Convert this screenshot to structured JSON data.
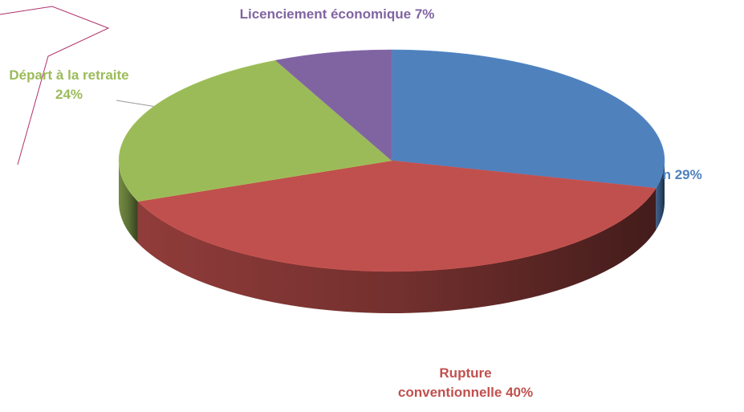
{
  "chart_data": {
    "type": "pie",
    "categories": [
      "Démission",
      "Rupture conventionnelle",
      "Départ à la retraite",
      "Licenciement économique"
    ],
    "values": [
      29,
      40,
      24,
      7
    ],
    "value_labels": [
      "29%",
      "40%",
      "24%",
      "7%"
    ],
    "colors": [
      "#4f81bd",
      "#c0504d",
      "#9bbb59",
      "#8064a2"
    ]
  }
}
